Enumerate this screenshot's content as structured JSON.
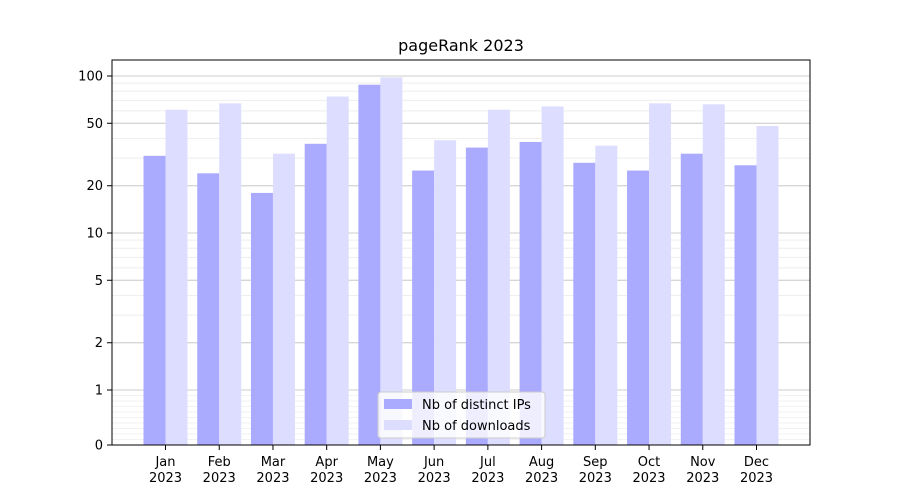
{
  "chart_data": {
    "type": "bar",
    "title": "pageRank 2023",
    "xlabel": "",
    "ylabel": "",
    "y_scale": "symlog",
    "ylim": [
      0,
      120
    ],
    "y_ticks": [
      0,
      1,
      2,
      5,
      10,
      20,
      50,
      100
    ],
    "grid": true,
    "legend_position": "bottom-center",
    "categories": [
      [
        "Jan",
        "2023"
      ],
      [
        "Feb",
        "2023"
      ],
      [
        "Mar",
        "2023"
      ],
      [
        "Apr",
        "2023"
      ],
      [
        "May",
        "2023"
      ],
      [
        "Jun",
        "2023"
      ],
      [
        "Jul",
        "2023"
      ],
      [
        "Aug",
        "2023"
      ],
      [
        "Sep",
        "2023"
      ],
      [
        "Oct",
        "2023"
      ],
      [
        "Nov",
        "2023"
      ],
      [
        "Dec",
        "2023"
      ]
    ],
    "series": [
      {
        "name": "Nb of distinct IPs",
        "color": "#aaaaff",
        "values": [
          31,
          24,
          18,
          37,
          88,
          25,
          35,
          38,
          28,
          25,
          32,
          27
        ]
      },
      {
        "name": "Nb of downloads",
        "color": "#ddddff",
        "values": [
          61,
          67,
          32,
          74,
          98,
          39,
          61,
          64,
          36,
          67,
          66,
          48
        ]
      }
    ]
  }
}
